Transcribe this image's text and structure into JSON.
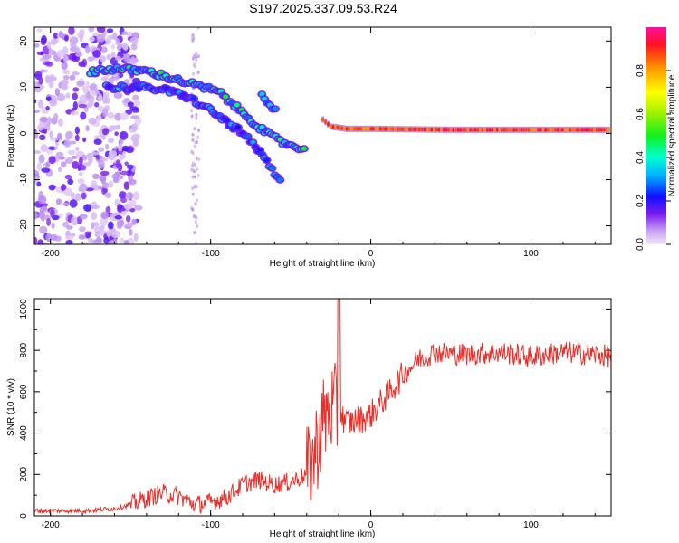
{
  "title": "S197.2025.337.09.53.R24",
  "chart_data": [
    {
      "type": "heatmap",
      "title": "S197.2025.337.09.53.R24",
      "xlabel": "Height of straight line (km)",
      "ylabel": "Frequency (Hz)",
      "xlim": [
        -210,
        150
      ],
      "ylim": [
        -24,
        23
      ],
      "x_ticks": [
        -200,
        -100,
        0,
        100
      ],
      "y_ticks": [
        -20,
        -10,
        0,
        10,
        20
      ],
      "colorbar": {
        "label": "Normalized spectral amplitude",
        "range": [
          0,
          1
        ],
        "ticks": [
          "0.0",
          "0.2",
          "0.4",
          "0.6",
          "0.8"
        ],
        "tick_values": [
          0.0,
          0.2,
          0.4,
          0.6,
          0.8
        ]
      },
      "features": [
        {
          "name": "upper-branch",
          "points": [
            [
              -175,
              13.5
            ],
            [
              -160,
              14
            ],
            [
              -140,
              13.5
            ],
            [
              -125,
              12
            ],
            [
              -110,
              10.5
            ],
            [
              -95,
              9
            ],
            [
              -85,
              6
            ],
            [
              -75,
              3
            ],
            [
              -65,
              0
            ],
            [
              -55,
              -2
            ],
            [
              -45,
              -3
            ],
            [
              -40,
              -3.5
            ]
          ],
          "amplitude": 0.42
        },
        {
          "name": "lower-branch",
          "points": [
            [
              -165,
              10
            ],
            [
              -145,
              10
            ],
            [
              -130,
              9.5
            ],
            [
              -115,
              8
            ],
            [
              -100,
              5
            ],
            [
              -90,
              2.5
            ],
            [
              -80,
              0
            ],
            [
              -72,
              -3
            ],
            [
              -65,
              -6
            ],
            [
              -60,
              -9
            ],
            [
              -55,
              -11
            ]
          ],
          "amplitude": 0.3
        },
        {
          "name": "side-branch",
          "points": [
            [
              -68,
              8
            ],
            [
              -63,
              6.5
            ],
            [
              -58,
              4.5
            ]
          ],
          "amplitude": 0.35
        },
        {
          "name": "near-zero-line",
          "points": [
            [
              -30,
              3
            ],
            [
              -25,
              1.5
            ],
            [
              -15,
              1
            ],
            [
              0,
              1
            ],
            [
              50,
              0.8
            ],
            [
              100,
              0.8
            ],
            [
              150,
              0.8
            ]
          ],
          "amplitude": 0.95
        }
      ]
    },
    {
      "type": "line",
      "xlabel": "Height of straight line (km)",
      "ylabel": "SNR (10 * v/v)",
      "xlim": [
        -210,
        150
      ],
      "ylim": [
        0,
        1050
      ],
      "x_ticks": [
        -200,
        -100,
        0,
        100
      ],
      "y_ticks": [
        0,
        200,
        400,
        600,
        800,
        1000
      ],
      "series": [
        {
          "name": "SNR",
          "color": "#e8302a",
          "x": [
            -210,
            -180,
            -160,
            -150,
            -140,
            -130,
            -120,
            -110,
            -100,
            -90,
            -80,
            -70,
            -60,
            -50,
            -40,
            -35,
            -30,
            -25,
            -20,
            -15,
            -10,
            -5,
            0,
            10,
            20,
            30,
            40,
            60,
            80,
            100,
            120,
            140,
            150
          ],
          "y": [
            25,
            25,
            35,
            55,
            85,
            110,
            95,
            55,
            65,
            90,
            150,
            175,
            150,
            165,
            200,
            300,
            450,
            520,
            500,
            450,
            460,
            470,
            490,
            580,
            680,
            760,
            790,
            780,
            790,
            770,
            790,
            780,
            770
          ]
        }
      ]
    }
  ],
  "colors": {
    "line": "#e8302a",
    "axis": "#000000",
    "background": "#ffffff"
  }
}
